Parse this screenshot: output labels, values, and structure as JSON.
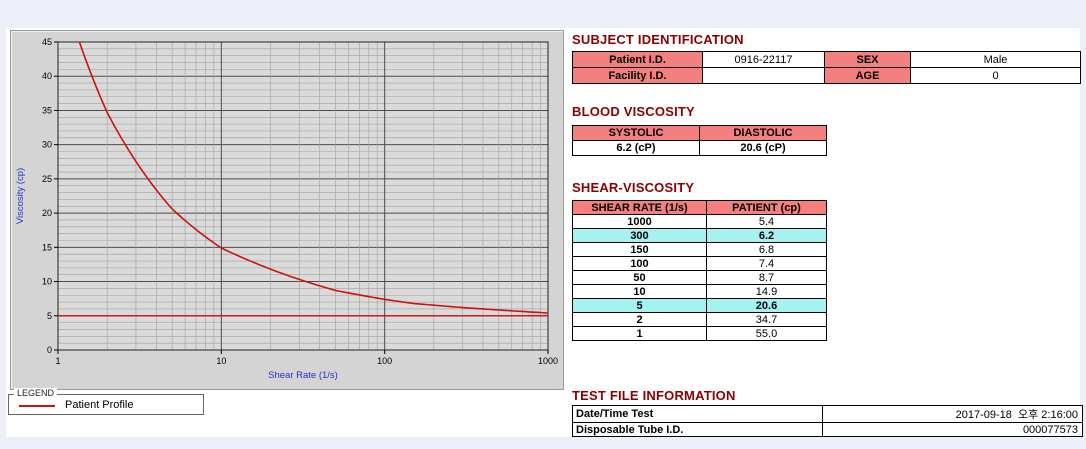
{
  "colors": {
    "heading": "#8b0000",
    "table_header_pink": "#f47f7f",
    "row_highlight_cyan": "#a5f2f0",
    "curve_red": "#cc1111",
    "axis_label_blue": "#2233cc",
    "chart_panel_gray": "#d4d4d4",
    "page_background": "#edf0f8"
  },
  "legend": {
    "title": "LEGEND",
    "items": [
      {
        "label": "Patient Profile",
        "color": "#cc1111"
      }
    ]
  },
  "chart_data": {
    "type": "line",
    "x_scale": "log",
    "x": [
      1,
      2,
      5,
      10,
      50,
      100,
      150,
      300,
      1000
    ],
    "series": [
      {
        "name": "Patient Profile",
        "values": [
          55.0,
          34.7,
          20.6,
          14.9,
          8.7,
          7.4,
          6.8,
          6.2,
          5.4
        ]
      }
    ],
    "baseline": 5.0,
    "xlim": [
      1,
      1000
    ],
    "ylim": [
      0,
      45
    ],
    "x_ticks": [
      1,
      10,
      100,
      1000
    ],
    "y_ticks": [
      0,
      5,
      10,
      15,
      20,
      25,
      30,
      35,
      40,
      45
    ],
    "xlabel": "Shear Rate (1/s)",
    "ylabel": "Viscosity (cp)",
    "line_color": "#cc1111",
    "grid": "on",
    "legend_position": "below-left"
  },
  "subject": {
    "title": "SUBJECT IDENTIFICATION",
    "rows": [
      {
        "label1": "Patient I.D.",
        "value1": "0916-22117",
        "label2": "SEX",
        "value2": "Male"
      },
      {
        "label1": "Facility I.D.",
        "value1": "",
        "label2": "AGE",
        "value2": "0"
      }
    ]
  },
  "blood_viscosity": {
    "title": "BLOOD VISCOSITY",
    "headers": [
      "SYSTOLIC",
      "DIASTOLIC"
    ],
    "values": [
      "6.2 (cP)",
      "20.6 (cP)"
    ]
  },
  "shear_viscosity": {
    "title": "SHEAR-VISCOSITY",
    "headers": [
      "SHEAR RATE (1/s)",
      "PATIENT (cp)"
    ],
    "rows": [
      {
        "rate": "1000",
        "value": "5.4",
        "highlight": false
      },
      {
        "rate": "300",
        "value": "6.2",
        "highlight": true
      },
      {
        "rate": "150",
        "value": "6.8",
        "highlight": false
      },
      {
        "rate": "100",
        "value": "7.4",
        "highlight": false
      },
      {
        "rate": "50",
        "value": "8.7",
        "highlight": false
      },
      {
        "rate": "10",
        "value": "14.9",
        "highlight": false
      },
      {
        "rate": "5",
        "value": "20.6",
        "highlight": true
      },
      {
        "rate": "2",
        "value": "34.7",
        "highlight": false
      },
      {
        "rate": "1",
        "value": "55.0",
        "highlight": false
      }
    ]
  },
  "test_file": {
    "title": "TEST FILE INFORMATION",
    "rows": [
      {
        "label": "Date/Time Test",
        "value": "2017-09-18  오후 2:16:00"
      },
      {
        "label": "Disposable Tube I.D.",
        "value": "000077573"
      }
    ]
  }
}
